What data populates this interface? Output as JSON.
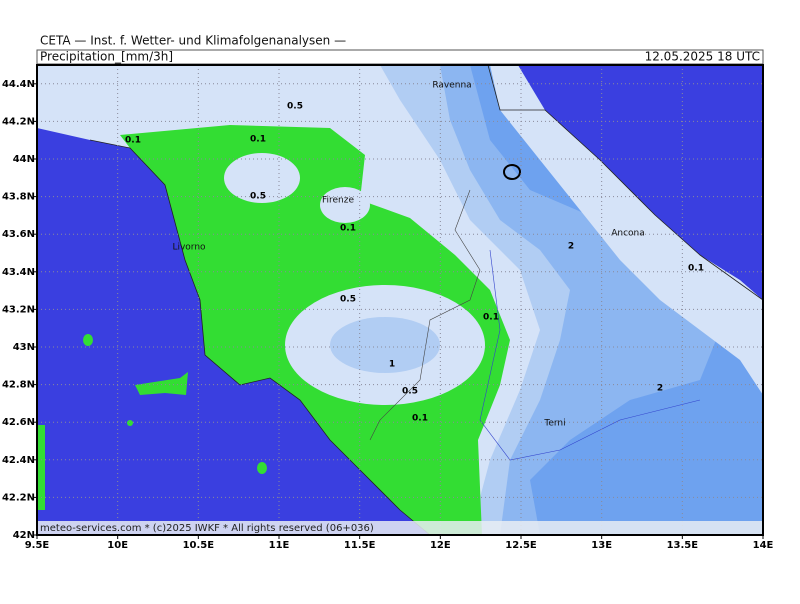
{
  "header": {
    "line1": "CETA — Inst. f. Wetter- und Klimafolgenanalysen —",
    "title": "Precipitation_[mm/3h]",
    "timestamp": "12.05.2025 18 UTC"
  },
  "footer": "meteo-services.com * (c)2025 IWKF * All rights reserved (06+036)",
  "x_ticks": [
    "9.5E",
    "10E",
    "10.5E",
    "11E",
    "11.5E",
    "12E",
    "12.5E",
    "13E",
    "13.5E",
    "14E"
  ],
  "y_ticks": [
    "42N",
    "42.2N",
    "42.4N",
    "42.6N",
    "42.8N",
    "43N",
    "43.2N",
    "43.4N",
    "43.6N",
    "43.8N",
    "44N",
    "44.2N",
    "44.4N"
  ],
  "places": [
    "Ravenna",
    "Firenze",
    "Livorno",
    "Ancona",
    "Terni"
  ],
  "contour_labels": [
    0.5,
    0.1,
    0.1,
    0.5,
    0.1,
    2,
    0.1,
    0.5,
    0.1,
    1,
    0.5,
    2,
    0.1
  ]
}
